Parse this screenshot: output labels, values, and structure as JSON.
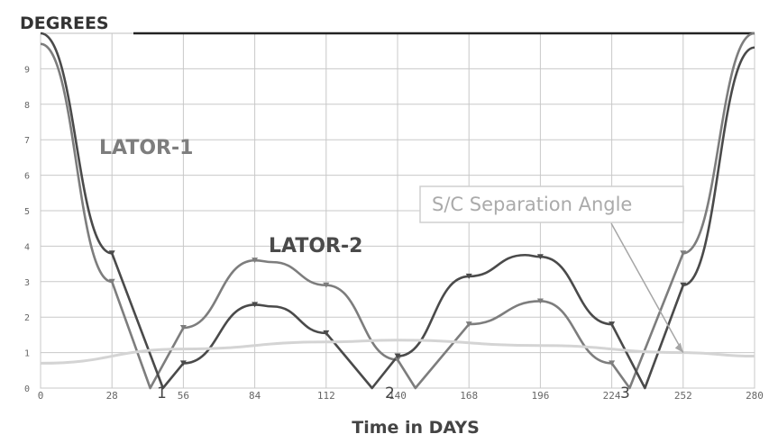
{
  "chart_data": {
    "type": "line",
    "title": "DEGREES",
    "xlabel": "Time in DAYS",
    "ylabel": "",
    "xlim": [
      0,
      280
    ],
    "ylim": [
      0,
      10
    ],
    "x_ticks": [
      "0",
      "28",
      "56",
      "84",
      "112",
      "140",
      "168",
      "196",
      "224",
      "252",
      "280"
    ],
    "y_ticks": [
      "0",
      "1",
      "2",
      "3",
      "4",
      "5",
      "6",
      "7",
      "8",
      "9"
    ],
    "grid": true,
    "series": [
      {
        "name": "LATOR-1",
        "color": "#7d7d7d",
        "x": [
          0,
          28,
          43,
          56,
          84,
          91,
          112,
          140,
          147,
          168,
          196,
          224,
          231,
          252,
          280
        ],
        "y": [
          9.7,
          3.0,
          0,
          1.7,
          3.6,
          3.55,
          2.9,
          0.8,
          0,
          1.8,
          2.45,
          0.7,
          0,
          3.8,
          10
        ]
      },
      {
        "name": "LATOR-2",
        "color": "#4a4a4a",
        "x": [
          0,
          28,
          48,
          56,
          84,
          91,
          112,
          130,
          140,
          168,
          190,
          196,
          224,
          237,
          252,
          280
        ],
        "y": [
          10,
          3.8,
          0,
          0.7,
          2.35,
          2.3,
          1.55,
          0,
          0.9,
          3.15,
          3.75,
          3.7,
          1.8,
          0,
          2.9,
          9.6
        ]
      },
      {
        "name": "S/C Separation Angle",
        "color": "#d4d4d4",
        "x": [
          0,
          56,
          112,
          140,
          196,
          252,
          280
        ],
        "y": [
          0.7,
          1.1,
          1.3,
          1.35,
          1.2,
          1.0,
          0.9
        ]
      }
    ],
    "markers": {
      "LATOR-1": [
        [
          28,
          3.0
        ],
        [
          56,
          1.7
        ],
        [
          84,
          3.6
        ],
        [
          112,
          2.9
        ],
        [
          140,
          0.8
        ],
        [
          168,
          1.8
        ],
        [
          196,
          2.45
        ],
        [
          224,
          0.7
        ],
        [
          252,
          3.8
        ]
      ],
      "LATOR-2": [
        [
          28,
          3.8
        ],
        [
          56,
          0.7
        ],
        [
          84,
          2.35
        ],
        [
          112,
          1.55
        ],
        [
          140,
          0.9
        ],
        [
          168,
          3.15
        ],
        [
          196,
          3.7
        ],
        [
          224,
          1.8
        ],
        [
          252,
          2.9
        ]
      ]
    },
    "annotations": [
      {
        "text": "LATOR-1",
        "series": "LATOR-1"
      },
      {
        "text": "LATOR-2",
        "series": "LATOR-2"
      },
      {
        "text": "S/C Separation Angle",
        "series": "S/C Separation Angle",
        "points_to": [
          252,
          1.0
        ]
      },
      {
        "text": "1",
        "x": 47,
        "y": 0
      },
      {
        "text": "2",
        "x": 139,
        "y": 0
      },
      {
        "text": "3",
        "x": 229,
        "y": 0
      }
    ]
  }
}
